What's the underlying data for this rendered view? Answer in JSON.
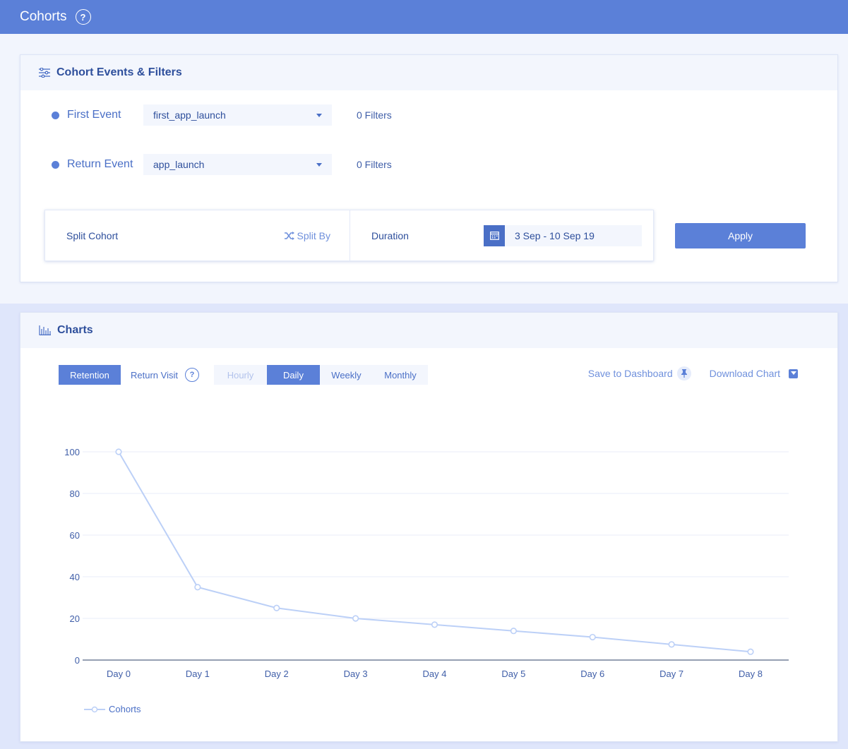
{
  "header": {
    "title": "Cohorts",
    "help": "?"
  },
  "filters_panel": {
    "title": "Cohort Events & Filters",
    "first_event": {
      "label": "First Event",
      "value": "first_app_launch",
      "filters": "0 Filters"
    },
    "return_event": {
      "label": "Return Event",
      "value": "app_launch",
      "filters": "0 Filters"
    },
    "split_cohort": "Split Cohort",
    "split_by": "Split By",
    "duration_label": "Duration",
    "duration_value": "3 Sep - 10 Sep 19",
    "apply": "Apply"
  },
  "charts_panel": {
    "title": "Charts",
    "mode_tabs": [
      {
        "label": "Retention",
        "active": true
      },
      {
        "label": "Return Visit",
        "active": false
      }
    ],
    "help": "?",
    "granularity_tabs": [
      {
        "label": "Hourly",
        "state": "disabled"
      },
      {
        "label": "Daily",
        "state": "active"
      },
      {
        "label": "Weekly",
        "state": "normal"
      },
      {
        "label": "Monthly",
        "state": "normal"
      }
    ],
    "save_to_dashboard": "Save to Dashboard",
    "download_chart": "Download Chart"
  },
  "chart_data": {
    "type": "line",
    "categories": [
      "Day 0",
      "Day 1",
      "Day 2",
      "Day 3",
      "Day 4",
      "Day 5",
      "Day 6",
      "Day 7",
      "Day 8"
    ],
    "series": [
      {
        "name": "Cohorts",
        "values": [
          100,
          35,
          25,
          20,
          17,
          14,
          11,
          7.5,
          4
        ]
      }
    ],
    "ylim": [
      0,
      100
    ],
    "yticks": [
      0,
      20,
      40,
      60,
      80,
      100
    ],
    "grid": true,
    "legend_position": "bottom-left",
    "line_color": "#bcd0f7"
  }
}
